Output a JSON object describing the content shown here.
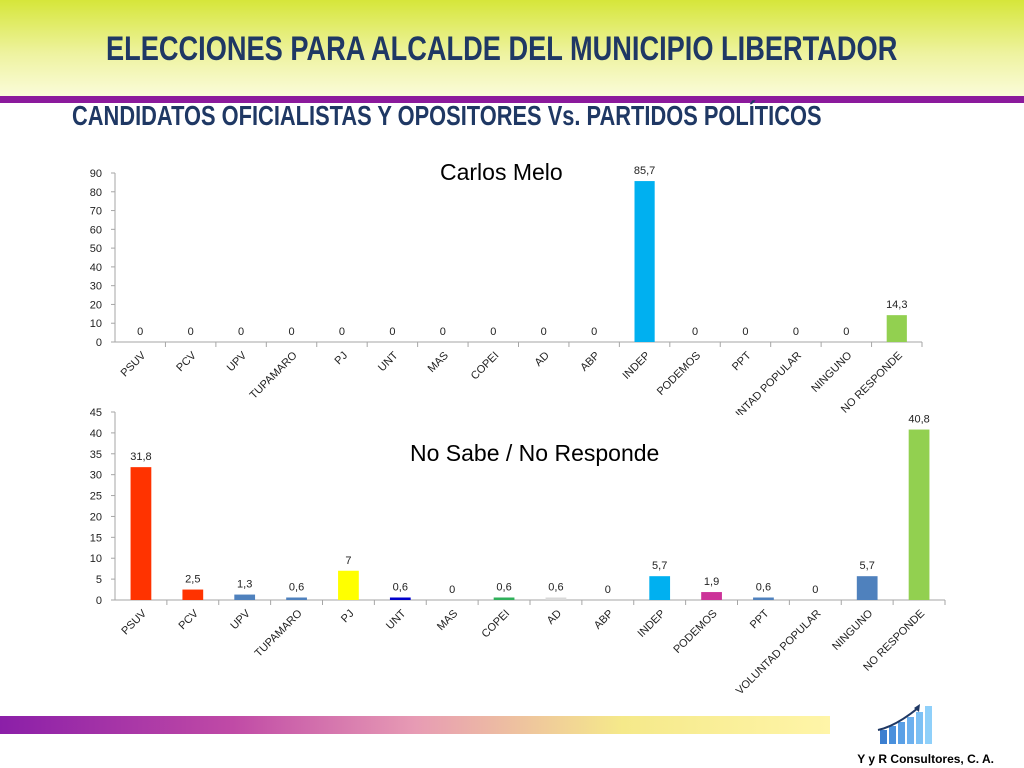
{
  "header": {
    "title": "ELECCIONES PARA ALCALDE DEL MUNICIPIO LIBERTADOR",
    "subtitle": "CANDIDATOS OFICIALISTAS Y OPOSITORES Vs. PARTIDOS POLÍTICOS"
  },
  "footer": {
    "credit": "Y y R Consultores, C. A."
  },
  "chart_data": [
    {
      "type": "bar",
      "title": "Carlos Melo",
      "categories": [
        "PSUV",
        "PCV",
        "UPV",
        "TUPAMARO",
        "PJ",
        "UNT",
        "MAS",
        "COPEI",
        "AD",
        "ABP",
        "INDEP",
        "PODEMOS",
        "PPT",
        "VOLUNTAD POPULAR",
        "NINGUNO",
        "NO RESPONDE"
      ],
      "values": [
        0,
        0,
        0,
        0,
        0,
        0,
        0,
        0,
        0,
        0,
        85.7,
        null,
        0,
        0,
        0,
        14.3
      ],
      "value_labels": [
        "0",
        "0",
        "0",
        "0",
        "0",
        "0",
        "0",
        "0",
        "0",
        "0",
        "85,7",
        "0",
        "0",
        "0",
        "0",
        "14,3"
      ],
      "colors": [
        "#ff3300",
        "#ff3300",
        "#4f81bd",
        "#4f81bd",
        "#ffff00",
        "#0000cc",
        "#4f81bd",
        "#2fb05a",
        "#4f81bd",
        "#4f81bd",
        "#00b0f0",
        "#cc3399",
        "#4f81bd",
        "#4f81bd",
        "#4f81bd",
        "#92d050"
      ],
      "yticks": [
        0,
        10,
        20,
        30,
        40,
        50,
        60,
        70,
        80,
        90
      ],
      "ylim": [
        0,
        90
      ]
    },
    {
      "type": "bar",
      "title": "No Sabe / No Responde",
      "categories": [
        "PSUV",
        "PCV",
        "UPV",
        "TUPAMARO",
        "PJ",
        "UNT",
        "MAS",
        "COPEI",
        "AD",
        "ABP",
        "INDEP",
        "PODEMOS",
        "PPT",
        "VOLUNTAD POPULAR",
        "NINGUNO",
        "NO RESPONDE"
      ],
      "values": [
        31.8,
        2.5,
        1.3,
        0.6,
        7,
        0.6,
        0,
        0.6,
        0.6,
        0,
        5.7,
        1.9,
        0.6,
        0,
        5.7,
        40.8
      ],
      "value_labels": [
        "31,8",
        "2,5",
        "1,3",
        "0,6",
        "7",
        "0,6",
        "0",
        "0,6",
        "0,6",
        "0",
        "5,7",
        "1,9",
        "0,6",
        "0",
        "5,7",
        "40,8"
      ],
      "colors": [
        "#ff3300",
        "#ff3300",
        "#4f81bd",
        "#4f81bd",
        "#ffff00",
        "#0000cc",
        "#4f81bd",
        "#2fb05a",
        "#d9d9d9",
        "#4f81bd",
        "#00b0f0",
        "#cc3399",
        "#4f81bd",
        "#4f81bd",
        "#4f81bd",
        "#92d050"
      ],
      "yticks": [
        0,
        5,
        10,
        15,
        20,
        25,
        30,
        35,
        40,
        45
      ],
      "ylim": [
        0,
        45
      ]
    }
  ]
}
